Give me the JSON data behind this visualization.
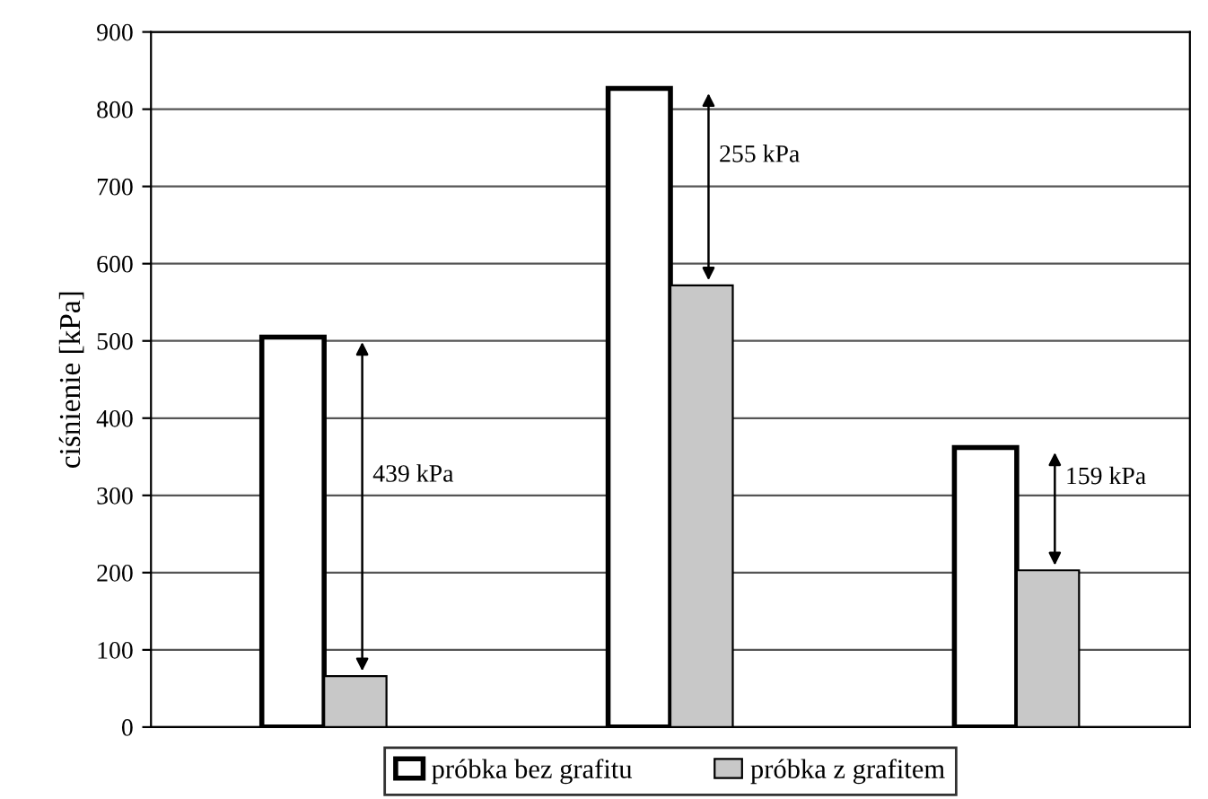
{
  "chart_data": {
    "type": "bar",
    "ylabel": "ciśnienie [kPa]",
    "categories": [
      null,
      null,
      null
    ],
    "series": [
      {
        "name": "próbka bez grafitu",
        "color": "#ffffff",
        "values": [
          505,
          827,
          362
        ]
      },
      {
        "name": "próbka z grafitem",
        "color": "#c8c8c8",
        "values": [
          66,
          572,
          203
        ]
      }
    ],
    "annotations": [
      "439 kPa",
      "255 kPa",
      "159 kPa"
    ],
    "ylim": [
      0,
      900
    ],
    "yticks": [
      0,
      100,
      200,
      300,
      400,
      500,
      600,
      700,
      800,
      900
    ],
    "grid": "y",
    "legend": "bottom"
  }
}
